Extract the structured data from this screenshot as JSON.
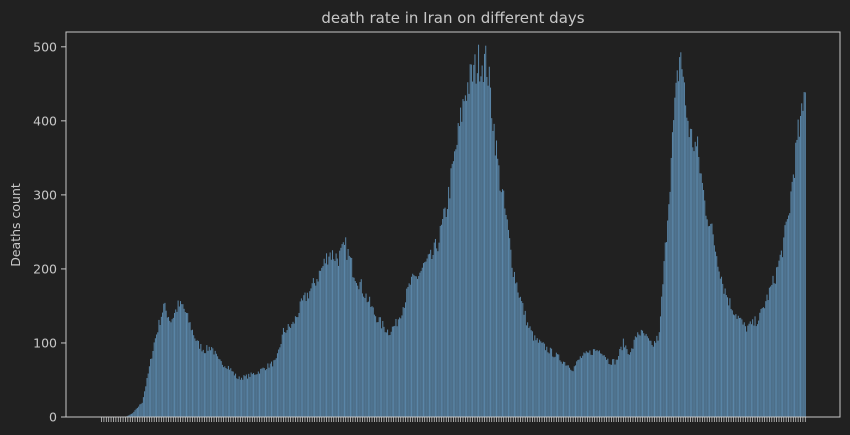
{
  "chart_data": {
    "type": "bar",
    "title": "death rate in Iran on different days",
    "xlabel": "",
    "ylabel": "Deaths count",
    "ylim": [
      0,
      520
    ],
    "yticks": [
      0,
      100,
      200,
      300,
      400,
      500
    ],
    "grid": false,
    "legend": "none",
    "colors": {
      "background": "#212121",
      "bar": "#5a86a8",
      "axes": "#c8c8c8",
      "text": "#c8c8c8"
    },
    "n_days": 460,
    "anchors": [
      [
        0,
        0
      ],
      [
        20,
        0
      ],
      [
        26,
        5
      ],
      [
        34,
        20
      ],
      [
        38,
        50
      ],
      [
        44,
        100
      ],
      [
        52,
        150
      ],
      [
        58,
        130
      ],
      [
        64,
        150
      ],
      [
        68,
        150
      ],
      [
        74,
        125
      ],
      [
        80,
        100
      ],
      [
        86,
        90
      ],
      [
        92,
        95
      ],
      [
        98,
        75
      ],
      [
        106,
        68
      ],
      [
        114,
        52
      ],
      [
        122,
        55
      ],
      [
        130,
        60
      ],
      [
        138,
        68
      ],
      [
        146,
        75
      ],
      [
        152,
        115
      ],
      [
        160,
        125
      ],
      [
        168,
        155
      ],
      [
        176,
        175
      ],
      [
        184,
        200
      ],
      [
        190,
        222
      ],
      [
        198,
        215
      ],
      [
        204,
        230
      ],
      [
        210,
        200
      ],
      [
        216,
        180
      ],
      [
        222,
        160
      ],
      [
        228,
        140
      ],
      [
        234,
        125
      ],
      [
        240,
        115
      ],
      [
        246,
        125
      ],
      [
        252,
        150
      ],
      [
        258,
        180
      ],
      [
        264,
        190
      ],
      [
        270,
        205
      ],
      [
        276,
        215
      ],
      [
        282,
        240
      ],
      [
        288,
        280
      ],
      [
        292,
        320
      ],
      [
        298,
        380
      ],
      [
        304,
        440
      ],
      [
        310,
        462
      ],
      [
        316,
        482
      ],
      [
        322,
        478
      ],
      [
        326,
        420
      ],
      [
        332,
        330
      ],
      [
        338,
        270
      ],
      [
        344,
        200
      ],
      [
        350,
        160
      ],
      [
        356,
        125
      ],
      [
        362,
        105
      ],
      [
        370,
        95
      ],
      [
        378,
        85
      ],
      [
        386,
        75
      ],
      [
        394,
        65
      ],
      [
        400,
        80
      ],
      [
        406,
        85
      ],
      [
        412,
        90
      ],
      [
        418,
        90
      ],
      [
        424,
        75
      ],
      [
        430,
        75
      ],
      [
        436,
        100
      ],
      [
        442,
        85
      ],
      [
        448,
        115
      ],
      [
        454,
        110
      ],
      [
        460,
        95
      ]
    ],
    "anchors2": [
      [
        0,
        95
      ],
      [
        6,
        110
      ],
      [
        12,
        250
      ],
      [
        18,
        395
      ],
      [
        22,
        470
      ],
      [
        24,
        495
      ],
      [
        28,
        420
      ],
      [
        32,
        380
      ],
      [
        38,
        360
      ],
      [
        44,
        290
      ],
      [
        50,
        250
      ],
      [
        56,
        205
      ],
      [
        60,
        175
      ],
      [
        66,
        150
      ],
      [
        72,
        135
      ],
      [
        78,
        120
      ],
      [
        84,
        125
      ],
      [
        90,
        135
      ],
      [
        96,
        160
      ],
      [
        102,
        185
      ],
      [
        108,
        220
      ],
      [
        114,
        270
      ],
      [
        118,
        330
      ],
      [
        122,
        380
      ],
      [
        126,
        410
      ],
      [
        128,
        455
      ]
    ]
  }
}
